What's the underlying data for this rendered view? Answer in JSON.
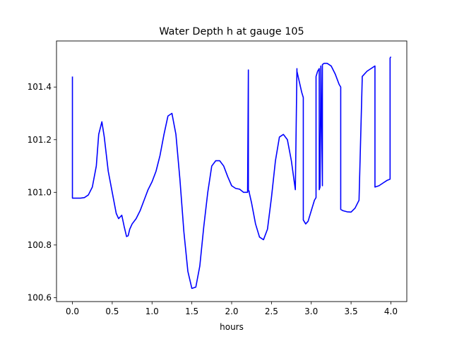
{
  "chart_data": {
    "type": "line",
    "title": "Water Depth h at gauge 105",
    "xlabel": "hours",
    "ylabel": "",
    "xlim": [
      -0.2,
      4.2
    ],
    "ylim": [
      100.585,
      101.575
    ],
    "xticks": [
      0.0,
      0.5,
      1.0,
      1.5,
      2.0,
      2.5,
      3.0,
      3.5,
      4.0
    ],
    "xtick_labels": [
      "0.0",
      "0.5",
      "1.0",
      "1.5",
      "2.0",
      "2.5",
      "3.0",
      "3.5",
      "4.0"
    ],
    "yticks": [
      100.6,
      100.8,
      101.0,
      101.2,
      101.4
    ],
    "ytick_labels": [
      "100.6",
      "100.8",
      "101.0",
      "101.2",
      "101.4"
    ],
    "grid": false,
    "series": [
      {
        "color": "#0000ff",
        "x": [
          0.0,
          0.0,
          0.1,
          0.15,
          0.2,
          0.25,
          0.3,
          0.33,
          0.37,
          0.4,
          0.45,
          0.5,
          0.55,
          0.58,
          0.62,
          0.65,
          0.68,
          0.7,
          0.72,
          0.75,
          0.8,
          0.85,
          0.9,
          0.95,
          1.0,
          1.05,
          1.1,
          1.15,
          1.2,
          1.25,
          1.3,
          1.35,
          1.4,
          1.45,
          1.5,
          1.55,
          1.6,
          1.65,
          1.7,
          1.75,
          1.8,
          1.85,
          1.9,
          1.95,
          2.0,
          2.05,
          2.1,
          2.15,
          2.2,
          2.21,
          2.21,
          2.22,
          2.22,
          2.25,
          2.3,
          2.35,
          2.4,
          2.45,
          2.5,
          2.55,
          2.6,
          2.65,
          2.7,
          2.75,
          2.8,
          2.82,
          2.82,
          2.85,
          2.88,
          2.9,
          2.9,
          2.93,
          2.96,
          3.0,
          3.04,
          3.06,
          3.06,
          3.08,
          3.1,
          3.1,
          3.11,
          3.12,
          3.12,
          3.14,
          3.14,
          3.16,
          3.2,
          3.25,
          3.3,
          3.35,
          3.37,
          3.37,
          3.4,
          3.45,
          3.5,
          3.55,
          3.6,
          3.64,
          3.64,
          3.7,
          3.75,
          3.8,
          3.8,
          3.85,
          3.9,
          3.95,
          3.99,
          3.99,
          4.0
        ],
        "y": [
          101.44,
          100.978,
          100.978,
          100.98,
          100.99,
          101.02,
          101.1,
          101.22,
          101.268,
          101.21,
          101.08,
          101.0,
          100.92,
          100.9,
          100.913,
          100.87,
          100.832,
          100.835,
          100.86,
          100.88,
          100.9,
          100.93,
          100.97,
          101.01,
          101.04,
          101.08,
          101.14,
          101.22,
          101.29,
          101.3,
          101.22,
          101.05,
          100.85,
          100.7,
          100.635,
          100.64,
          100.72,
          100.87,
          101.0,
          101.1,
          101.12,
          101.12,
          101.1,
          101.06,
          101.025,
          101.015,
          101.012,
          101.0,
          101.0,
          101.465,
          101.005,
          101.005,
          101.0,
          100.96,
          100.88,
          100.83,
          100.82,
          100.86,
          100.98,
          101.12,
          101.21,
          101.22,
          101.2,
          101.12,
          101.01,
          101.47,
          101.46,
          101.42,
          101.38,
          101.36,
          100.895,
          100.88,
          100.89,
          100.93,
          100.97,
          100.98,
          101.44,
          101.46,
          101.47,
          101.01,
          101.02,
          101.44,
          101.48,
          101.025,
          101.485,
          101.49,
          101.49,
          101.48,
          101.45,
          101.41,
          101.4,
          100.935,
          100.93,
          100.926,
          100.925,
          100.94,
          100.97,
          101.43,
          101.44,
          101.46,
          101.47,
          101.48,
          101.02,
          101.025,
          101.035,
          101.045,
          101.05,
          101.51,
          101.515
        ]
      }
    ]
  }
}
